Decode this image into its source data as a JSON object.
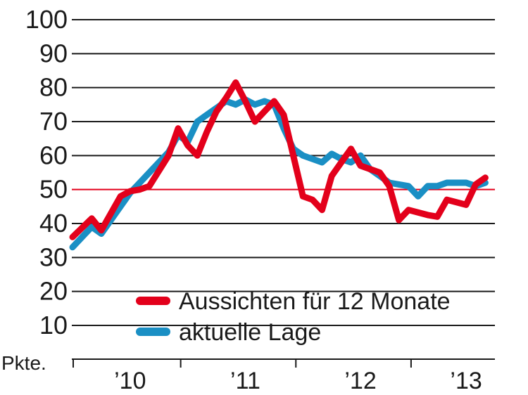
{
  "chart_data": {
    "type": "line",
    "unit_label": "Pkte.",
    "ylim": [
      10,
      100
    ],
    "yticks": [
      10,
      20,
      30,
      40,
      50,
      60,
      70,
      80,
      90,
      100
    ],
    "reference_line": 50,
    "grid": true,
    "xlim": [
      0,
      44
    ],
    "x_tick_positions": [
      0,
      12,
      24,
      36
    ],
    "x_year_labels": [
      {
        "label": "’10",
        "x": 6
      },
      {
        "label": "’11",
        "x": 18
      },
      {
        "label": "’12",
        "x": 30
      },
      {
        "label": "’13",
        "x": 41
      }
    ],
    "series": [
      {
        "name": "Aussichten für 12 Monate",
        "color": "#e3001b",
        "x": [
          0,
          2,
          3,
          5,
          6,
          7,
          8,
          10,
          11,
          12,
          13,
          14,
          15,
          16,
          17,
          18,
          19,
          21,
          22,
          23,
          24,
          25,
          26,
          27,
          28,
          29,
          30,
          32,
          33,
          34,
          35,
          37,
          38,
          39,
          41,
          42,
          43
        ],
        "values": [
          36,
          41.5,
          38,
          48,
          49.5,
          50,
          51,
          60,
          68,
          63,
          60,
          67,
          73,
          77,
          81.5,
          76,
          70,
          76,
          72,
          60,
          48,
          47,
          44,
          54,
          58,
          62,
          57,
          55,
          51,
          41,
          44,
          42.5,
          42,
          47,
          45.5,
          51.5,
          53.5
        ]
      },
      {
        "name": "aktuelle Lage",
        "color": "#1a8fc4",
        "x": [
          0,
          1,
          2,
          3,
          5,
          6,
          7,
          8,
          10,
          11,
          12,
          13,
          14,
          15,
          16,
          17,
          18,
          19,
          20,
          21,
          22,
          23,
          24,
          25,
          26,
          27,
          28,
          29,
          30,
          31,
          32,
          33,
          34,
          35,
          36,
          37,
          38,
          39,
          40,
          41,
          42,
          43
        ],
        "values": [
          33,
          36,
          39,
          37,
          45,
          49,
          52,
          55,
          61,
          66,
          64,
          70,
          72,
          74,
          76,
          75,
          76.5,
          75,
          76,
          75,
          68,
          62,
          60,
          59,
          58,
          60.5,
          59,
          58,
          60,
          56,
          54,
          52,
          51.5,
          51,
          48,
          51,
          51,
          52,
          52,
          52,
          51,
          52
        ]
      }
    ]
  }
}
